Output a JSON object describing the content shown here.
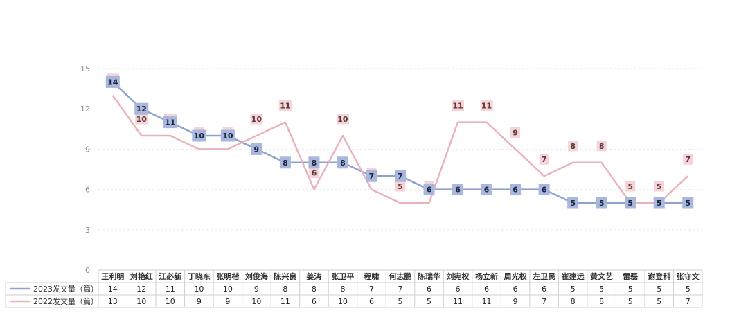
{
  "chart_data": {
    "type": "line",
    "categories": [
      "王利明",
      "刘艳红",
      "江必新",
      "丁晓东",
      "张明楷",
      "刘俊海",
      "陈兴良",
      "姜涛",
      "张卫平",
      "程啸",
      "何志鹏",
      "陈瑞华",
      "刘宪权",
      "杨立新",
      "周光权",
      "左卫民",
      "崔建远",
      "黄文艺",
      "雷磊",
      "谢登科",
      "张守文"
    ],
    "series": [
      {
        "name": "2023发文量（篇）",
        "color": "#8fa1cf",
        "label_bg": "#a9b7dc",
        "values": [
          14,
          12,
          11,
          10,
          10,
          9,
          8,
          8,
          8,
          7,
          7,
          6,
          6,
          6,
          6,
          6,
          5,
          5,
          5,
          5,
          5
        ]
      },
      {
        "name": "2022发文量（篇）",
        "color": "#eab3bb",
        "label_bg": "#f6d3d6",
        "values": [
          13,
          10,
          10,
          9,
          9,
          10,
          11,
          6,
          10,
          6,
          5,
          5,
          11,
          11,
          9,
          7,
          8,
          8,
          5,
          5,
          7
        ]
      }
    ],
    "yticks": [
      0,
      3,
      6,
      9,
      12,
      15
    ],
    "ylim": [
      0,
      15
    ],
    "grid": true,
    "legend": "table"
  }
}
